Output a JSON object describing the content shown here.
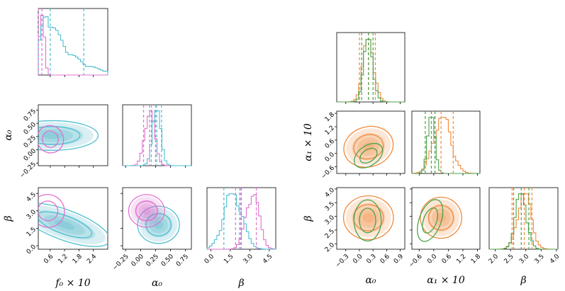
{
  "chart_data": [
    {
      "type": "corner",
      "title": "",
      "colors": {
        "magenta": "#e070d0",
        "cyan": "#4fbfcf",
        "cyan_fill": "#2aa5be"
      },
      "series": [
        {
          "name": "magenta",
          "color": "#e070d0",
          "f0x10": {
            "median": 0.25,
            "lo": 0.1,
            "hi": 0.55
          },
          "alpha0": {
            "median": 0.15,
            "lo": 0.05,
            "hi": 0.25
          },
          "beta": {
            "median": 2.3,
            "lo": 1.9,
            "hi": 3.5
          }
        },
        {
          "name": "cyan",
          "color": "#4fbfcf",
          "f0x10": {
            "median": 0.6,
            "lo": 0.25,
            "hi": 2.0
          },
          "alpha0": {
            "median": 0.27,
            "lo": 0.18,
            "hi": 0.35
          },
          "beta": {
            "median": 2.2,
            "lo": 1.0,
            "hi": 2.35
          }
        }
      ],
      "params": [
        {
          "key": "f0",
          "label": "f₀ × 10",
          "range": [
            0.1,
            3.0
          ],
          "ticks": [
            {
              "v": 0.6,
              "t": "0.6"
            },
            {
              "v": 1.2,
              "t": "1.2"
            },
            {
              "v": 1.8,
              "t": "1.8"
            },
            {
              "v": 2.4,
              "t": "2.4"
            }
          ]
        },
        {
          "key": "a0",
          "label": "α₀",
          "range": [
            -0.3,
            0.85
          ],
          "ticks": [
            {
              "v": -0.25,
              "t": "−0.25"
            },
            {
              "v": 0.0,
              "t": "0.00"
            },
            {
              "v": 0.25,
              "t": "0.25"
            },
            {
              "v": 0.5,
              "t": "0.50"
            },
            {
              "v": 0.75,
              "t": "0.75"
            }
          ]
        },
        {
          "key": "b",
          "label": "β",
          "range": [
            -0.3,
            5.0
          ],
          "ticks": [
            {
              "v": 0.0,
              "t": "0.0"
            },
            {
              "v": 1.5,
              "t": "1.5"
            },
            {
              "v": 3.0,
              "t": "3.0"
            },
            {
              "v": 4.5,
              "t": "4.5"
            }
          ]
        }
      ],
      "row_ticks": {
        "a0": [
          {
            "v": -0.25,
            "t": "−0.25"
          },
          {
            "v": 0.0,
            "t": "0.00"
          },
          {
            "v": 0.25,
            "t": "0.25"
          },
          {
            "v": 0.5,
            "t": "0.50"
          },
          {
            "v": 0.75,
            "t": "0.75"
          }
        ],
        "b": [
          {
            "v": 0.0,
            "t": "0.0"
          },
          {
            "v": 1.5,
            "t": "1.5"
          },
          {
            "v": 3.0,
            "t": "3.0"
          },
          {
            "v": 4.5,
            "t": "4.5"
          }
        ]
      }
    },
    {
      "type": "corner",
      "title": "",
      "colors": {
        "orange": "#f08a3c",
        "green": "#4ba34b",
        "orange_fill": "#f07a20"
      },
      "series": [
        {
          "name": "orange",
          "color": "#f08a3c",
          "a0": {
            "median": 0.2,
            "lo": 0.0,
            "hi": 0.35
          },
          "a1": {
            "median": 0.3,
            "lo": 0.05,
            "hi": 0.8
          },
          "b": {
            "median": 2.95,
            "lo": 2.55,
            "hi": 3.2
          }
        },
        {
          "name": "green",
          "color": "#4ba34b",
          "a0": {
            "median": 0.2,
            "lo": 0.05,
            "hi": 0.3
          },
          "a1": {
            "median": -0.1,
            "lo": -0.35,
            "hi": 0.05
          },
          "b": {
            "median": 2.85,
            "lo": 2.6,
            "hi": 3.1
          }
        }
      ],
      "params": [
        {
          "key": "a0",
          "label": "α₀",
          "range": [
            -0.5,
            1.0
          ],
          "ticks": [
            {
              "v": -0.3,
              "t": "−0.3"
            },
            {
              "v": 0.0,
              "t": "0.0"
            },
            {
              "v": 0.3,
              "t": "0.3"
            },
            {
              "v": 0.6,
              "t": "0.6"
            },
            {
              "v": 0.9,
              "t": "0.9"
            }
          ]
        },
        {
          "key": "a1",
          "label": "α₁ × 10",
          "range": [
            -0.9,
            1.9
          ],
          "ticks": [
            {
              "v": -0.6,
              "t": "−0.6"
            },
            {
              "v": 0.0,
              "t": "0.0"
            },
            {
              "v": 0.6,
              "t": "0.6"
            },
            {
              "v": 1.2,
              "t": "1.2"
            },
            {
              "v": 1.8,
              "t": "1.8"
            }
          ]
        },
        {
          "key": "b",
          "label": "β",
          "range": [
            1.8,
            4.05
          ],
          "ticks": [
            {
              "v": 2.0,
              "t": "2.0"
            },
            {
              "v": 2.5,
              "t": "2.5"
            },
            {
              "v": 3.0,
              "t": "3.0"
            },
            {
              "v": 3.5,
              "t": "3.5"
            },
            {
              "v": 4.0,
              "t": "4.0"
            }
          ]
        }
      ],
      "row_ticks": {
        "a1": [
          {
            "v": -0.6,
            "t": "−0.6"
          },
          {
            "v": 0.0,
            "t": "0.0"
          },
          {
            "v": 0.6,
            "t": "0.6"
          },
          {
            "v": 1.2,
            "t": "1.2"
          },
          {
            "v": 1.8,
            "t": "1.8"
          }
        ],
        "b": [
          {
            "v": 2.0,
            "t": "2.0"
          },
          {
            "v": 2.5,
            "t": "2.5"
          },
          {
            "v": 3.0,
            "t": "3.0"
          },
          {
            "v": 3.5,
            "t": "3.5"
          },
          {
            "v": 4.0,
            "t": "4.0"
          }
        ]
      }
    }
  ]
}
